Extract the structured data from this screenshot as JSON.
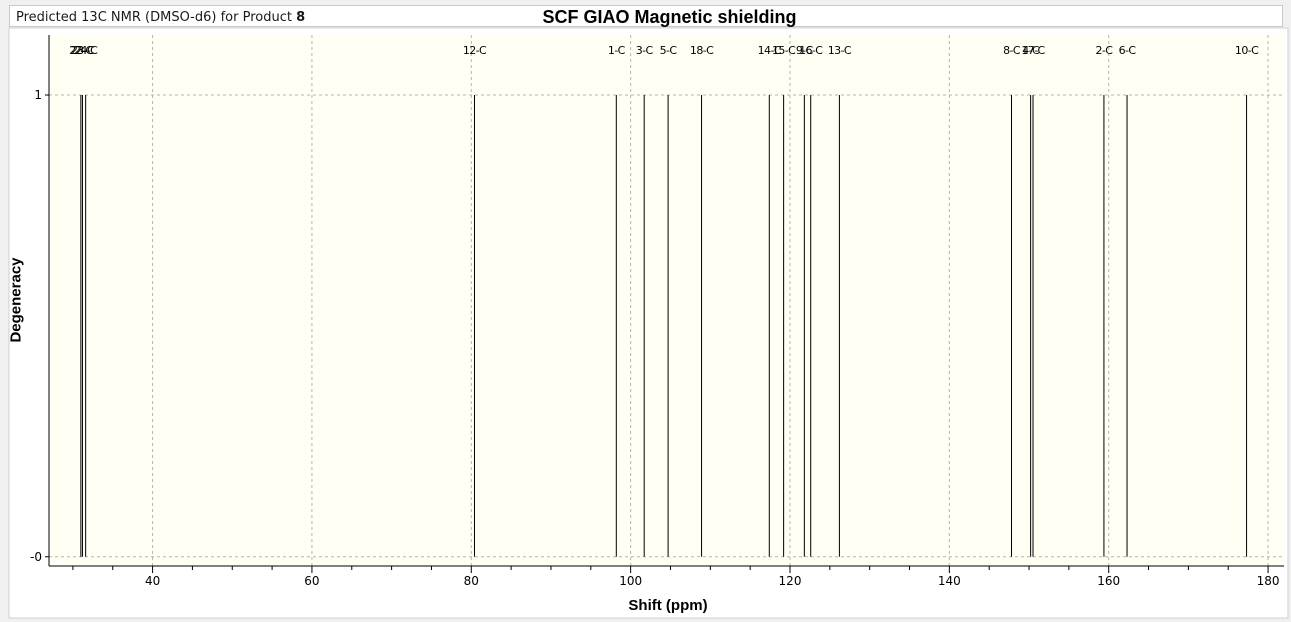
{
  "caption": {
    "text": "Predicted 13C NMR (DMSO-d6) for Product ",
    "product": "8"
  },
  "chart_data": {
    "type": "bar",
    "title": "SCF GIAO Magnetic shielding",
    "xlabel": "Shift (ppm)",
    "ylabel": "Degeneracy",
    "xlim": [
      27,
      182
    ],
    "ylim": [
      -0.02,
      1.13
    ],
    "x_major_ticks": [
      40,
      60,
      80,
      100,
      120,
      140,
      160,
      180
    ],
    "x_tick_labels": [
      "40",
      "60",
      "80",
      "100",
      "120",
      "140",
      "160",
      "180"
    ],
    "y_ticks": [
      0,
      1
    ],
    "y_tick_labels": [
      "-0",
      "1"
    ],
    "grid": true,
    "peaks": [
      {
        "label": "22-C",
        "x": 31.0,
        "y": 1
      },
      {
        "label": "23-C",
        "x": 31.2,
        "y": 1
      },
      {
        "label": "24-C",
        "x": 31.6,
        "y": 1
      },
      {
        "label": "12-C",
        "x": 80.4,
        "y": 1
      },
      {
        "label": "1-C",
        "x": 98.2,
        "y": 1
      },
      {
        "label": "3-C",
        "x": 101.7,
        "y": 1
      },
      {
        "label": "5-C",
        "x": 104.7,
        "y": 1
      },
      {
        "label": "18-C",
        "x": 108.9,
        "y": 1
      },
      {
        "label": "14-C",
        "x": 117.4,
        "y": 1
      },
      {
        "label": "15-C",
        "x": 119.2,
        "y": 1
      },
      {
        "label": "9-C",
        "x": 121.8,
        "y": 1
      },
      {
        "label": "16-C",
        "x": 122.6,
        "y": 1
      },
      {
        "label": "13-C",
        "x": 126.2,
        "y": 1
      },
      {
        "label": "8-C",
        "x": 147.8,
        "y": 1
      },
      {
        "label": "4-C",
        "x": 150.2,
        "y": 1
      },
      {
        "label": "17-C",
        "x": 150.5,
        "y": 1
      },
      {
        "label": "2-C",
        "x": 159.4,
        "y": 1
      },
      {
        "label": "6-C",
        "x": 162.3,
        "y": 1
      },
      {
        "label": "10-C",
        "x": 177.3,
        "y": 1
      }
    ]
  },
  "colors": {
    "plot_background": "#fffff3",
    "grid": "#b4b4b4",
    "peak": "#000000",
    "axis": "#000000"
  }
}
